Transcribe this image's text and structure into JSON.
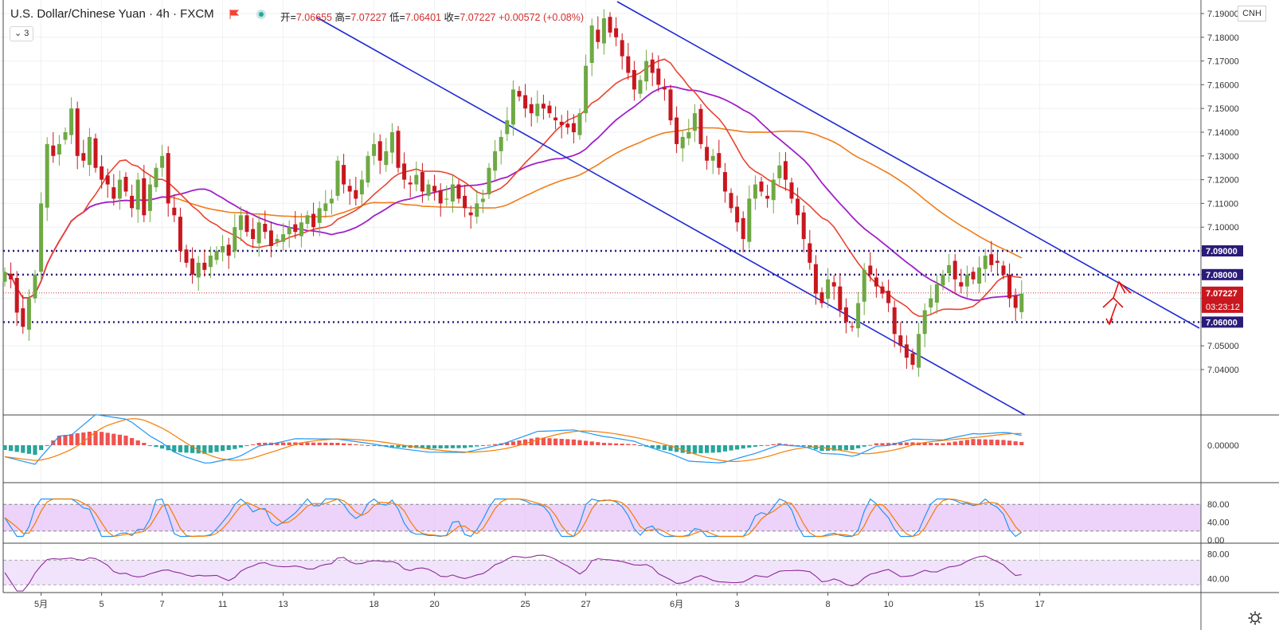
{
  "header": {
    "title": "U.S. Dollar/Chinese Yuan · 4h · FXCM",
    "ohlc": [
      {
        "label": "开",
        "value": "7.06655"
      },
      {
        "label": "高",
        "value": "7.07227"
      },
      {
        "label": "低",
        "value": "7.06401"
      },
      {
        "label": "收",
        "value": "7.07227"
      }
    ],
    "change": "+0.00572 (+0.08%)",
    "studies_button": "3",
    "symbol_badge": "CNH",
    "flag_icon": "flag-icon",
    "settings_icon": "gear-icon"
  },
  "colors": {
    "up": "#6ea943",
    "down": "#c8171f",
    "trend": "#1f2ad3",
    "ma_red": "#e9432e",
    "ma_purple": "#a020c8",
    "ma_orange": "#f07d1a",
    "level": "#2a1b7a",
    "price": "#c8171f",
    "macd_blue": "#2196f3",
    "macd_orange": "#f57c00",
    "hist_pos": "#ef5350",
    "hist_neg": "#26a69a",
    "band": "#e7c3f7",
    "rsi": "#8e2a9c"
  },
  "chart_data": [
    {
      "type": "candlestick",
      "ylim": [
        7.033,
        7.201
      ],
      "price_ticks": [
        "7.19000",
        "7.18000",
        "7.17000",
        "7.16000",
        "7.15000",
        "7.14000",
        "7.13000",
        "7.12000",
        "7.11000",
        "7.10000",
        "7.09000",
        "7.08000",
        "7.07000",
        "7.06000",
        "7.05000",
        "7.04000"
      ],
      "x_labels": [
        {
          "label": "5月",
          "i": 6
        },
        {
          "label": "5",
          "i": 16
        },
        {
          "label": "7",
          "i": 26
        },
        {
          "label": "11",
          "i": 36
        },
        {
          "label": "13",
          "i": 46
        },
        {
          "label": "18",
          "i": 61
        },
        {
          "label": "20",
          "i": 71
        },
        {
          "label": "25",
          "i": 86
        },
        {
          "label": "27",
          "i": 96
        },
        {
          "label": "6月",
          "i": 111
        },
        {
          "label": "3",
          "i": 121
        },
        {
          "label": "8",
          "i": 136
        },
        {
          "label": "10",
          "i": 146
        },
        {
          "label": "15",
          "i": 161
        },
        {
          "label": "17",
          "i": 171
        }
      ],
      "close": [
        7.081,
        7.078,
        7.064,
        7.058,
        7.07,
        7.08,
        7.11,
        7.135,
        7.13,
        7.135,
        7.14,
        7.15,
        7.13,
        7.128,
        7.138,
        7.125,
        7.12,
        7.118,
        7.112,
        7.12,
        7.115,
        7.108,
        7.12,
        7.105,
        7.118,
        7.125,
        7.13,
        7.11,
        7.105,
        7.09,
        7.085,
        7.08,
        7.085,
        7.082,
        7.088,
        7.09,
        7.092,
        7.088,
        7.1,
        7.105,
        7.098,
        7.095,
        7.102,
        7.098,
        7.092,
        7.095,
        7.097,
        7.1,
        7.098,
        7.102,
        7.105,
        7.1,
        7.108,
        7.11,
        7.112,
        7.128,
        7.118,
        7.115,
        7.112,
        7.12,
        7.13,
        7.135,
        7.128,
        7.132,
        7.14,
        7.125,
        7.12,
        7.118,
        7.122,
        7.115,
        7.118,
        7.115,
        7.11,
        7.112,
        7.118,
        7.112,
        7.108,
        7.105,
        7.11,
        7.112,
        7.125,
        7.132,
        7.138,
        7.145,
        7.158,
        7.155,
        7.15,
        7.148,
        7.152,
        7.15,
        7.148,
        7.145,
        7.143,
        7.142,
        7.14,
        7.148,
        7.168,
        7.185,
        7.178,
        7.188,
        7.182,
        7.18,
        7.172,
        7.165,
        7.158,
        7.162,
        7.17,
        7.165,
        7.16,
        7.158,
        7.145,
        7.135,
        7.138,
        7.14,
        7.148,
        7.135,
        7.128,
        7.13,
        7.125,
        7.115,
        7.108,
        7.102,
        7.095,
        7.112,
        7.118,
        7.115,
        7.112,
        7.12,
        7.126,
        7.12,
        7.112,
        7.105,
        7.095,
        7.085,
        7.072,
        7.068,
        7.078,
        7.075,
        7.065,
        7.06,
        7.058,
        7.068,
        7.082,
        7.08,
        7.075,
        7.072,
        7.068,
        7.055,
        7.05,
        7.045,
        7.042,
        7.055,
        7.065,
        7.07,
        7.076,
        7.08,
        7.084,
        7.078,
        7.075,
        7.08,
        7.078,
        7.083,
        7.088,
        7.084,
        7.085,
        7.08,
        7.07,
        7.066,
        7.072
      ],
      "levels": [
        "7.09000",
        "7.08000",
        "7.06000"
      ],
      "last_price": "7.07227",
      "countdown": "03:23:12"
    },
    {
      "type": "macd",
      "ticks": [
        "0.00000"
      ],
      "histogram_envelope": [
        [
          0,
          -1
        ],
        [
          5,
          -2
        ],
        [
          9,
          2
        ],
        [
          15,
          3
        ],
        [
          20,
          2
        ],
        [
          24,
          0
        ],
        [
          28,
          -1.4
        ],
        [
          33,
          -1.8
        ],
        [
          38,
          -0.8
        ],
        [
          42,
          0.5
        ],
        [
          48,
          0.6
        ],
        [
          55,
          0.5
        ],
        [
          60,
          0
        ],
        [
          64,
          -0.4
        ],
        [
          70,
          -0.7
        ],
        [
          76,
          -0.6
        ],
        [
          82,
          0.4
        ],
        [
          88,
          1.6
        ],
        [
          94,
          1.2
        ],
        [
          99,
          0.5
        ],
        [
          104,
          0.2
        ],
        [
          108,
          -0.8
        ],
        [
          113,
          -1.8
        ],
        [
          118,
          -1.5
        ],
        [
          123,
          -0.5
        ],
        [
          128,
          0.4
        ],
        [
          132,
          -0.2
        ],
        [
          135,
          -1.2
        ],
        [
          140,
          -1
        ],
        [
          144,
          0.4
        ],
        [
          150,
          0.6
        ],
        [
          155,
          0.4
        ],
        [
          160,
          1.3
        ],
        [
          165,
          1.1
        ],
        [
          170,
          0.4
        ]
      ]
    },
    {
      "type": "stochastic",
      "ylim": [
        0,
        100
      ],
      "ticks": [
        "80.00",
        "40.00",
        "0.00"
      ],
      "band": [
        20,
        80
      ]
    },
    {
      "type": "rsi",
      "ylim": [
        20,
        90
      ],
      "ticks": [
        "80.00",
        "40.00"
      ],
      "band": [
        30,
        70
      ]
    }
  ]
}
